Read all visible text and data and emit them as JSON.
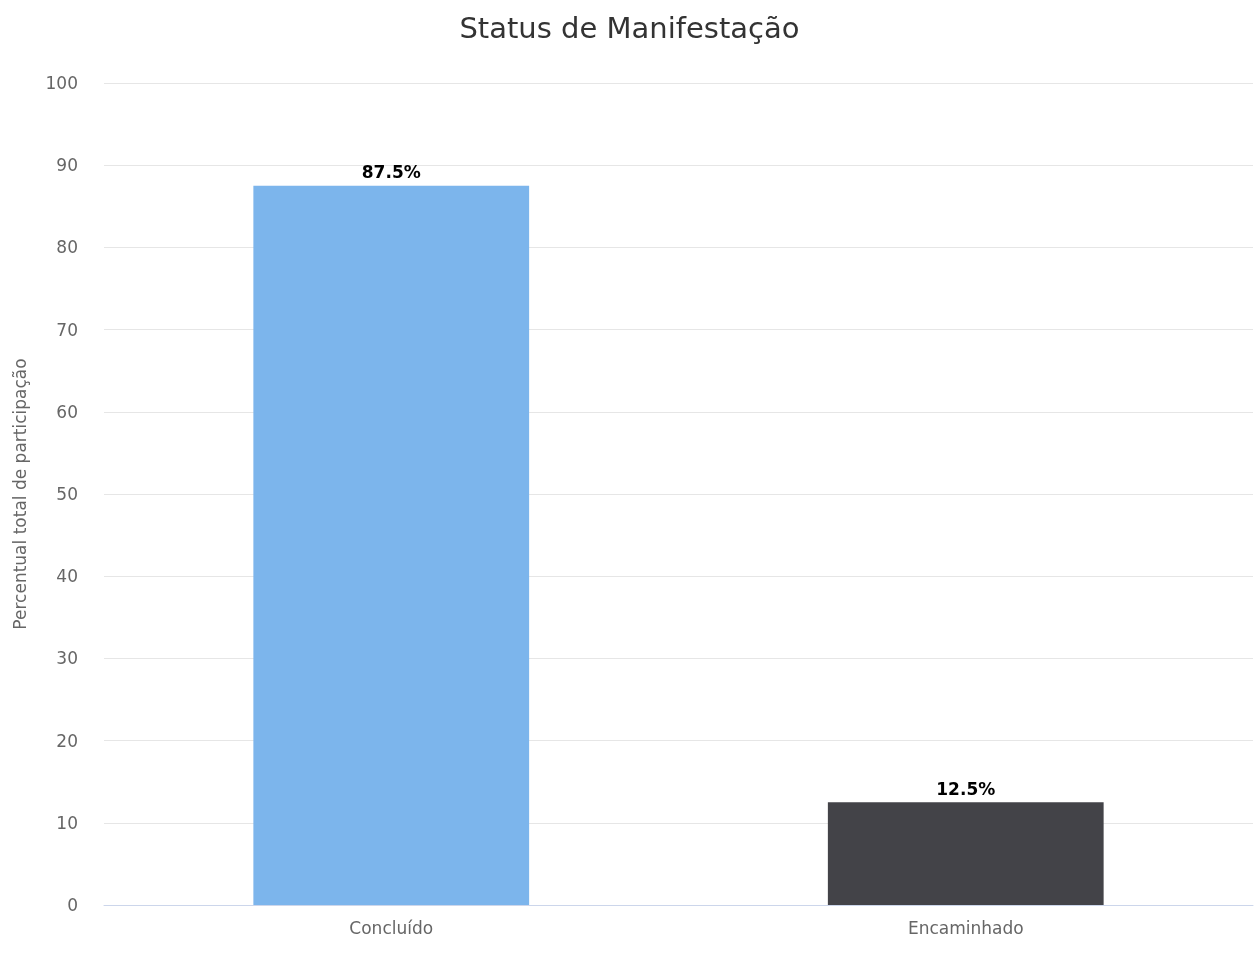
{
  "chart_data": {
    "type": "bar",
    "title": "Status de Manifestação",
    "ylabel": "Percentual total de participação",
    "categories": [
      "Concluído",
      "Encaminhado"
    ],
    "values": [
      87.5,
      12.5
    ],
    "colors": [
      "#7cb5ec",
      "#434348"
    ],
    "value_labels": [
      "87.5%",
      "12.5%"
    ],
    "ylim": [
      0,
      100
    ],
    "yticks": [
      0,
      10,
      20,
      30,
      40,
      50,
      60,
      70,
      80,
      90,
      100
    ],
    "grid": "y"
  }
}
